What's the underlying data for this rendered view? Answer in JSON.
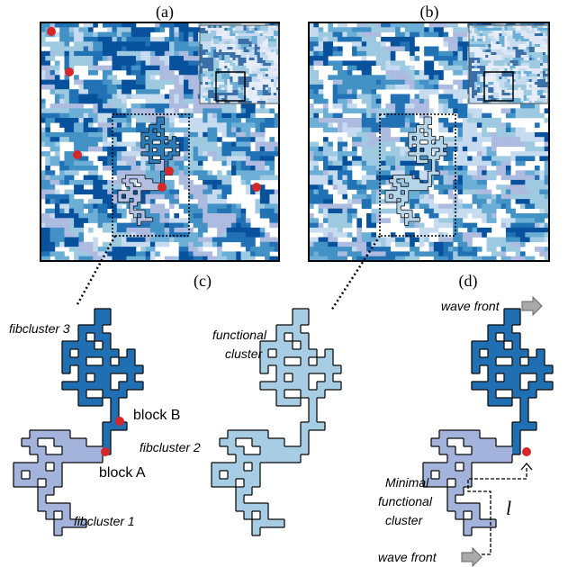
{
  "panel_labels": [
    "(a)",
    "(b)",
    "(c)",
    "(d)"
  ],
  "panel_c": {
    "fibcluster_3": "fibcluster 3",
    "block_b": "block B",
    "fibcluster_2": "fibcluster 2",
    "block_a": "block A",
    "fibcluster_1": "fibcluster 1"
  },
  "panel_b": {
    "functional_cluster": [
      "functional",
      "cluster"
    ]
  },
  "panel_d": {
    "wave_front_top": "wave front",
    "wave_front_bottom": "wave front",
    "minimal_functional_cluster": [
      "Minimal",
      "functional",
      "cluster"
    ],
    "length_symbol": "l"
  }
}
